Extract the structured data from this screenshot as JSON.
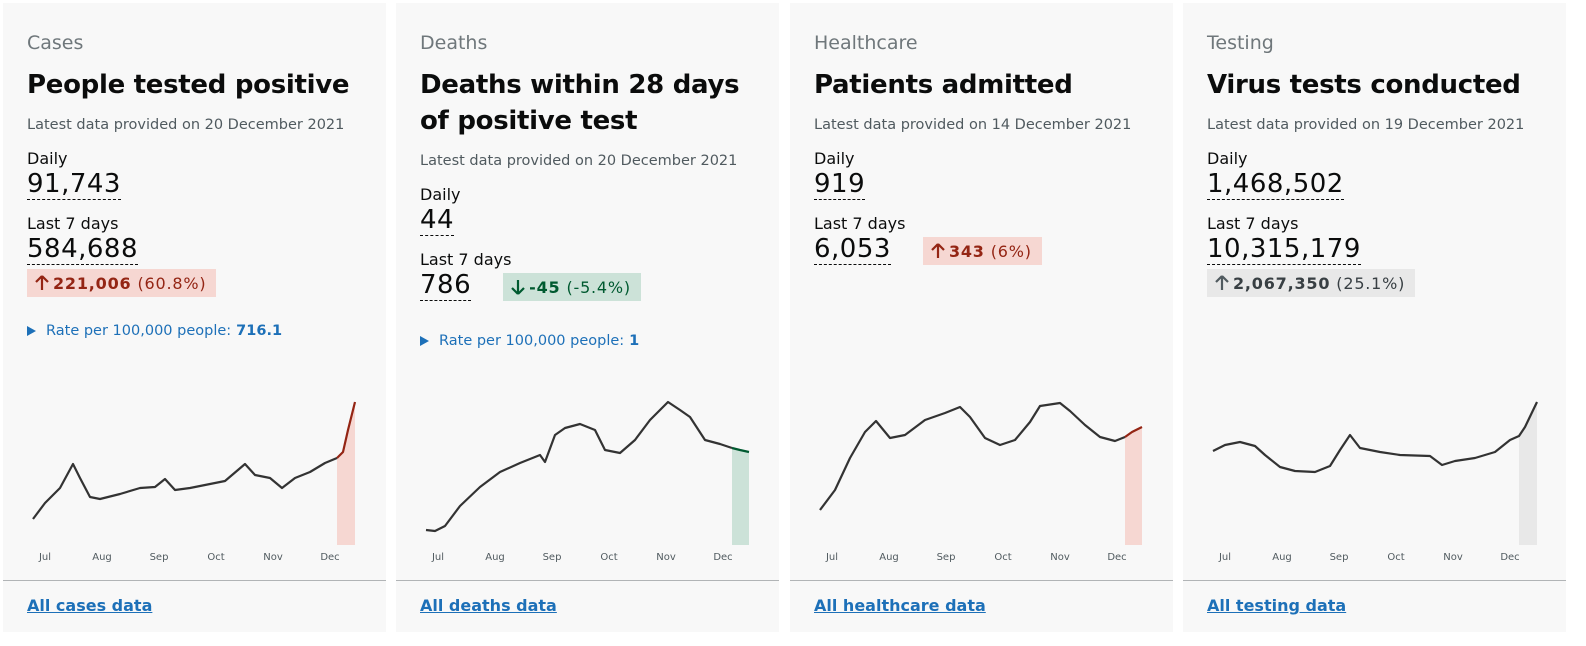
{
  "cards": [
    {
      "category": "Cases",
      "title": "People tested positive",
      "latest": "Latest data provided on 20 December 2021",
      "daily_label": "Daily",
      "daily": "91,743",
      "week_label": "Last 7 days",
      "week": "584,688",
      "change": "221,006",
      "change_pct": "(60.8%)",
      "rate_label": "Rate per 100,000 people:",
      "rate": "716.1",
      "months": [
        "Jul",
        "Aug",
        "Sep",
        "Oct",
        "Nov",
        "Dec"
      ],
      "link": "All cases data"
    },
    {
      "category": "Deaths",
      "title": "Deaths within 28 days of positive test",
      "latest": "Latest data provided on 20 December 2021",
      "daily_label": "Daily",
      "daily": "44",
      "week_label": "Last 7 days",
      "week": "786",
      "change": "-45",
      "change_pct": "(-5.4%)",
      "rate_label": "Rate per 100,000 people:",
      "rate": "1",
      "months": [
        "Jul",
        "Aug",
        "Sep",
        "Oct",
        "Nov",
        "Dec"
      ],
      "link": "All deaths data"
    },
    {
      "category": "Healthcare",
      "title": "Patients admitted",
      "latest": "Latest data provided on 14 December 2021",
      "daily_label": "Daily",
      "daily": "919",
      "week_label": "Last 7 days",
      "week": "6,053",
      "change": "343",
      "change_pct": "(6%)",
      "months": [
        "Jul",
        "Aug",
        "Sep",
        "Oct",
        "Nov",
        "Dec"
      ],
      "link": "All healthcare data"
    },
    {
      "category": "Testing",
      "title": "Virus tests conducted",
      "latest": "Latest data provided on 19 December 2021",
      "daily_label": "Daily",
      "daily": "1,468,502",
      "week_label": "Last 7 days",
      "week": "10,315,179",
      "change": "2,067,350",
      "change_pct": "(25.1%)",
      "months": [
        "Jul",
        "Aug",
        "Sep",
        "Oct",
        "Nov",
        "Dec"
      ],
      "link": "All testing data"
    }
  ]
}
